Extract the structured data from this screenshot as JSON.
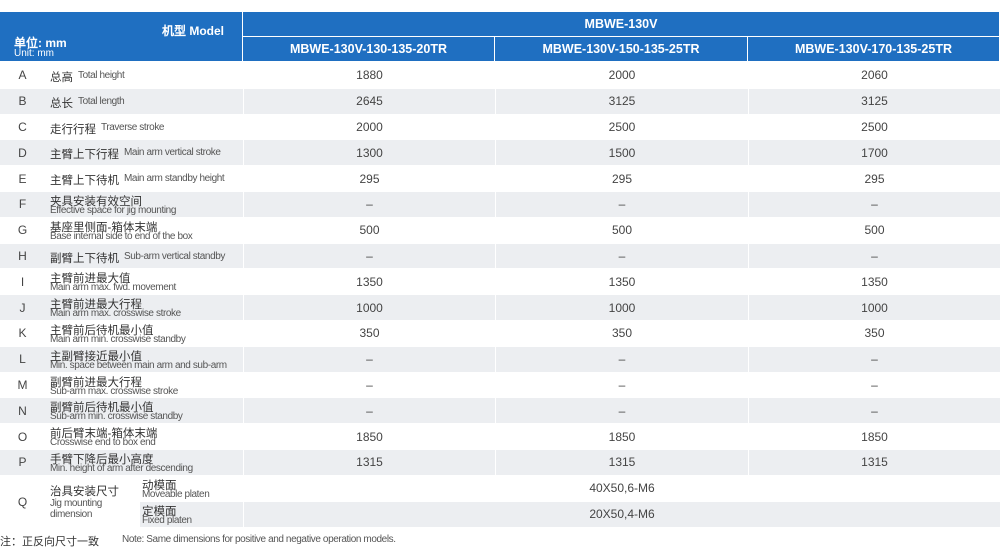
{
  "header": {
    "model_label": "机型 Model",
    "unit_cn": "单位: mm",
    "unit_en": "Unit: mm",
    "series": "MBWE-130V",
    "models": [
      "MBWE-130V-130-135-20TR",
      "MBWE-130V-150-135-25TR",
      "MBWE-130V-170-135-25TR"
    ]
  },
  "rows": [
    {
      "code": "A",
      "cn": "总高",
      "en": "Total height",
      "values": [
        1880,
        2000,
        2060
      ]
    },
    {
      "code": "B",
      "cn": "总长",
      "en": "Total length",
      "values": [
        2645,
        3125,
        3125
      ]
    },
    {
      "code": "C",
      "cn": "走行行程",
      "en": "Traverse stroke",
      "values": [
        2000,
        2500,
        2500
      ]
    },
    {
      "code": "D",
      "cn": "主臂上下行程",
      "en": "Main arm vertical stroke",
      "values": [
        1300,
        1500,
        1700
      ]
    },
    {
      "code": "E",
      "cn": "主臂上下待机",
      "en": "Main arm standby height",
      "values": [
        295,
        295,
        295
      ]
    },
    {
      "code": "F",
      "cn": "夹具安装有效空间",
      "en": "Effective space for jig mounting",
      "values": [
        "–",
        "–",
        "–"
      ]
    },
    {
      "code": "G",
      "cn": "基座里侧面-箱体末端",
      "en": "Base internal side to end of the box",
      "values": [
        500,
        500,
        500
      ]
    },
    {
      "code": "H",
      "cn": "副臂上下待机",
      "en": "Sub-arm vertical standby",
      "values": [
        "–",
        "–",
        "–"
      ]
    },
    {
      "code": "I",
      "cn": "主臂前进最大值",
      "en": "Main arm max. fwd. movement",
      "values": [
        1350,
        1350,
        1350
      ]
    },
    {
      "code": "J",
      "cn": "主臂前进最大行程",
      "en": "Main arm max. crosswise stroke",
      "values": [
        1000,
        1000,
        1000
      ]
    },
    {
      "code": "K",
      "cn": "主臂前后待机最小值",
      "en": "Main arm min. crosswise standby",
      "values": [
        350,
        350,
        350
      ]
    },
    {
      "code": "L",
      "cn": "主副臂接近最小值",
      "en": "Min. space between main arm and sub-arm",
      "values": [
        "–",
        "–",
        "–"
      ]
    },
    {
      "code": "M",
      "cn": "副臂前进最大行程",
      "en": "Sub-arm max. crosswise stroke",
      "values": [
        "–",
        "–",
        "–"
      ]
    },
    {
      "code": "N",
      "cn": "副臂前后待机最小值",
      "en": "Sub-arm min. crosswise standby",
      "values": [
        "–",
        "–",
        "–"
      ]
    },
    {
      "code": "O",
      "cn": "前后臂末端-箱体末端",
      "en": "Crosswise end to box end",
      "values": [
        1850,
        1850,
        1850
      ]
    },
    {
      "code": "P",
      "cn": "手臂下降后最小高度",
      "en": "Min. height of arm after descending",
      "values": [
        1315,
        1315,
        1315
      ]
    }
  ],
  "jig": {
    "code": "Q",
    "cn": "治具安装尺寸",
    "en": "Jig mounting dimension",
    "items": [
      {
        "cn": "动模面",
        "en": "Moveable platen",
        "value": "40X50,6-M6"
      },
      {
        "cn": "定模面",
        "en": "Fixed platen",
        "value": "20X50,4-M6"
      }
    ]
  },
  "note": {
    "cn": "注：正反向尺寸一致",
    "en": "Note: Same dimensions for positive and negative operation models."
  }
}
